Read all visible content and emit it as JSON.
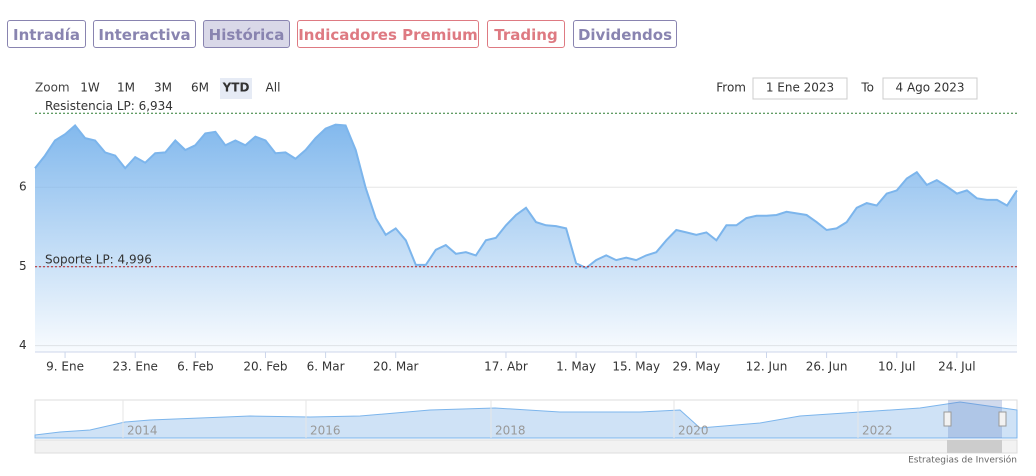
{
  "tabs": [
    "Intradía",
    "Interactiva",
    "Histórica",
    "Indicadores Premium",
    "Trading",
    "Dividendos"
  ],
  "zoom_label": "Zoom",
  "zoom_buttons": [
    "1W",
    "1M",
    "3M",
    "6M",
    "YTD",
    "All"
  ],
  "from_label": "From",
  "from_value": "1 Ene 2023",
  "to_label": "To",
  "to_value": "4 Ago 2023",
  "navigator_years": [
    "2014",
    "2016",
    "2018",
    "2020",
    "2022"
  ],
  "credit": "Estrategias de Inversión",
  "chart_data": {
    "type": "area",
    "color": "#7cb5ec",
    "values": [
      6.24,
      6.4,
      6.59,
      6.67,
      6.78,
      6.62,
      6.59,
      6.44,
      6.4,
      6.24,
      6.38,
      6.31,
      6.43,
      6.44,
      6.59,
      6.47,
      6.53,
      6.68,
      6.7,
      6.53,
      6.59,
      6.53,
      6.64,
      6.59,
      6.43,
      6.44,
      6.36,
      6.47,
      6.62,
      6.74,
      6.79,
      6.78,
      6.47,
      5.99,
      5.61,
      5.4,
      5.48,
      5.33,
      5.02,
      5.02,
      5.21,
      5.27,
      5.16,
      5.18,
      5.14,
      5.33,
      5.36,
      5.52,
      5.65,
      5.74,
      5.56,
      5.52,
      5.51,
      5.48,
      5.04,
      4.98,
      5.08,
      5.14,
      5.08,
      5.11,
      5.08,
      5.14,
      5.18,
      5.33,
      5.46,
      5.43,
      5.4,
      5.43,
      5.33,
      5.52,
      5.52,
      5.61,
      5.64,
      5.64,
      5.65,
      5.69,
      5.67,
      5.65,
      5.56,
      5.46,
      5.48,
      5.56,
      5.74,
      5.8,
      5.77,
      5.92,
      5.96,
      6.11,
      6.19,
      6.03,
      6.09,
      6.01,
      5.92,
      5.96,
      5.86,
      5.84,
      5.84,
      5.77,
      5.96
    ],
    "xlim": [
      0,
      98
    ],
    "xticks": [
      {
        "value": 3,
        "label": "9. Ene"
      },
      {
        "value": 10,
        "label": "23. Ene"
      },
      {
        "value": 16,
        "label": "6. Feb"
      },
      {
        "value": 23,
        "label": "20. Feb"
      },
      {
        "value": 29,
        "label": "6. Mar"
      },
      {
        "value": 36,
        "label": "20. Mar"
      },
      {
        "value": 47,
        "label": "17. Abr"
      },
      {
        "value": 54,
        "label": "1. May"
      },
      {
        "value": 60,
        "label": "15. May"
      },
      {
        "value": 66,
        "label": "29. May"
      },
      {
        "value": 73,
        "label": "12. Jun"
      },
      {
        "value": 79,
        "label": "26. Jun"
      },
      {
        "value": 86,
        "label": "10. Jul"
      },
      {
        "value": 92,
        "label": "24. Jul"
      }
    ],
    "ylim": [
      3.92,
      6.95
    ],
    "yticks": [
      4,
      5,
      6
    ],
    "grid": true,
    "plot_lines": [
      {
        "value": 6.934,
        "label": "Resistencia LP: 6,934",
        "color": "#2e7d32"
      },
      {
        "value": 4.996,
        "label": "Soporte LP: 4,996",
        "color": "#b71c1c"
      }
    ]
  }
}
